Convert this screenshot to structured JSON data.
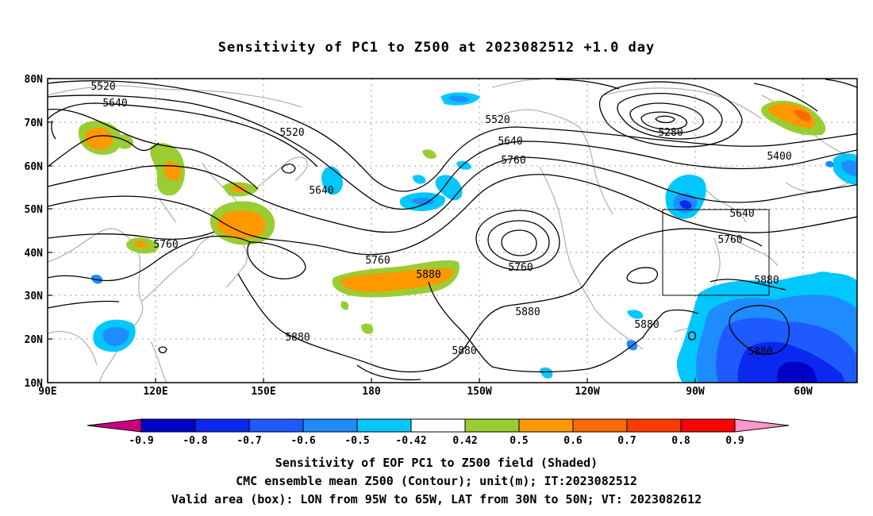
{
  "title": "Sensitivity of PC1 to Z500 at 2023082512 +1.0 day",
  "lat_labels": [
    "80N",
    "70N",
    "60N",
    "50N",
    "40N",
    "30N",
    "20N",
    "10N"
  ],
  "lon_labels": [
    "90E",
    "120E",
    "150E",
    "180",
    "150W",
    "120W",
    "90W",
    "60W"
  ],
  "contour_labels": [
    "5520",
    "5640",
    "5520",
    "5640",
    "5520",
    "5640",
    "5760",
    "5280",
    "5400",
    "5640",
    "5760",
    "5760",
    "5760",
    "5760",
    "5880",
    "5880",
    "5880",
    "5880",
    "5880",
    "5880",
    "5880"
  ],
  "colorbar": {
    "labels": [
      "-0.9",
      "-0.8",
      "-0.7",
      "-0.6",
      "-0.5",
      "-0.42",
      "0.42",
      "0.5",
      "0.6",
      "0.7",
      "0.8",
      "0.9"
    ],
    "colors": [
      "#0000c8",
      "#0a28f0",
      "#1e5aff",
      "#1e8cff",
      "#00c8ff",
      "#ffffff",
      "#9acd32",
      "#ff9900",
      "#ff6a00",
      "#ff3c00",
      "#ff0000"
    ],
    "low_extend_color": "#c8007d",
    "high_extend_color": "#ff96c8"
  },
  "captions": [
    "Sensitivity of EOF PC1 to Z500 field (Shaded)",
    "CMC ensemble mean Z500 (Contour); unit(m); IT:2023082512",
    "Valid area (box): LON from 95W to 65W, LAT from 30N to 50N; VT: 2023082612"
  ]
}
